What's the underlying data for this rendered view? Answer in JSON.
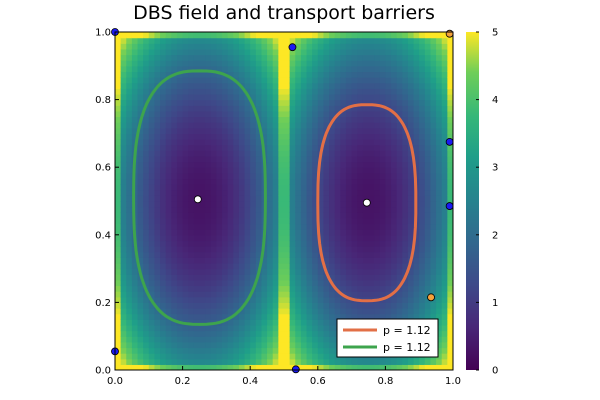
{
  "chart_data": {
    "type": "heatmap",
    "title": "DBS field and transport barriers",
    "xlabel": "",
    "ylabel": "",
    "xlim": [
      0,
      1
    ],
    "ylim": [
      0,
      1
    ],
    "x_ticks": [
      "0.0",
      "0.2",
      "0.4",
      "0.6",
      "0.8",
      "1.0"
    ],
    "y_ticks": [
      "0.0",
      "0.2",
      "0.4",
      "0.6",
      "0.8",
      "1.0"
    ],
    "colorbar": {
      "colormap": "viridis",
      "range": [
        0,
        5
      ],
      "ticks": [
        "0",
        "1",
        "2",
        "3",
        "4",
        "5"
      ]
    },
    "heatmap_description_values": {
      "left_cell_center": [
        0.25,
        0.5
      ],
      "right_cell_center": [
        0.75,
        0.5
      ],
      "min_value_at_centers": 0.3,
      "max_value_at_boundaries": 5
    },
    "series": [
      {
        "name": "p = 1.12",
        "type": "closed_curve",
        "color": "#e26f46",
        "center": [
          0.745,
          0.495
        ],
        "half_width": 0.145,
        "half_height": 0.29
      },
      {
        "name": "p = 1.12",
        "type": "closed_curve",
        "color": "#3da44d",
        "center": [
          0.25,
          0.51
        ],
        "half_width": 0.195,
        "half_height": 0.375
      }
    ],
    "points": {
      "centers_white": [
        [
          0.245,
          0.505
        ],
        [
          0.745,
          0.495
        ]
      ],
      "blue": [
        [
          0.0,
          1.0
        ],
        [
          0.525,
          0.955
        ],
        [
          0.99,
          0.675
        ],
        [
          0.99,
          0.485
        ],
        [
          0.0,
          0.055
        ],
        [
          0.535,
          0.002
        ]
      ],
      "orange": [
        [
          0.99,
          0.995
        ],
        [
          0.935,
          0.215
        ]
      ]
    },
    "legend": {
      "placement": "bottom-right",
      "entries": [
        "p = 1.12",
        "p = 1.12"
      ]
    }
  }
}
